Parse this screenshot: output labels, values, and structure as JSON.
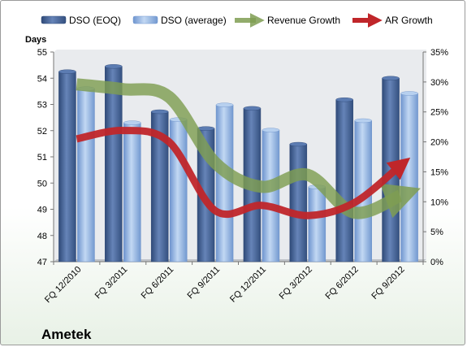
{
  "chart_data": {
    "type": "bar",
    "categories": [
      "FQ 12/2010",
      "FQ 3/2011",
      "FQ 6/2011",
      "FQ 9/2011",
      "FQ 12/2011",
      "FQ 3/2012",
      "FQ 6/2012",
      "FQ 9/2012"
    ],
    "series": [
      {
        "name": "DSO (EOQ)",
        "axis": "left",
        "values": [
          54.25,
          54.45,
          52.72,
          52.08,
          52.85,
          51.48,
          53.18,
          54.0
        ],
        "color": "#4f6fa3"
      },
      {
        "name": "DSO (average)",
        "axis": "left",
        "values": [
          53.6,
          52.3,
          52.42,
          52.98,
          52.02,
          49.85,
          52.38,
          53.42
        ],
        "color": "#9bbce6"
      },
      {
        "name": "Revenue Growth",
        "axis": "right",
        "type": "line",
        "values": [
          0.296,
          0.288,
          0.275,
          0.165,
          0.125,
          0.145,
          0.082,
          0.11
        ],
        "color": "#7f9e52"
      },
      {
        "name": "AR Growth",
        "axis": "right",
        "type": "line",
        "values": [
          0.205,
          0.219,
          0.2,
          0.085,
          0.094,
          0.077,
          0.098,
          0.16
        ],
        "color": "#c0262a"
      }
    ],
    "ylabel": "Days",
    "ylim": [
      47,
      55
    ],
    "yticks": [
      47,
      48,
      49,
      50,
      51,
      52,
      53,
      54,
      55
    ],
    "y2lim": [
      0,
      0.35
    ],
    "y2ticks": [
      "0%",
      "5%",
      "10%",
      "15%",
      "20%",
      "25%",
      "30%",
      "35%"
    ],
    "grid": false,
    "legend": "top",
    "footer": "Ametek"
  }
}
